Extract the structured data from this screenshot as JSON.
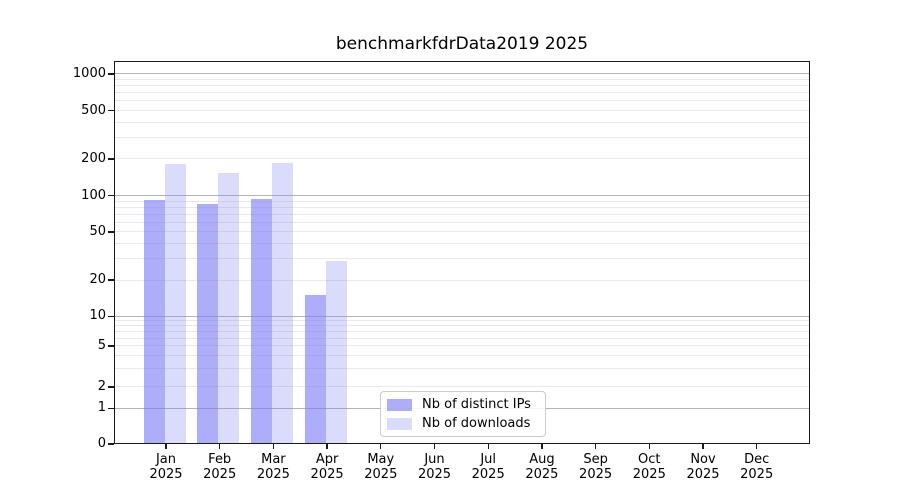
{
  "chart_data": {
    "type": "bar",
    "title": "benchmarkfdrData2019 2025",
    "scale": "symlog",
    "x_categories": [
      {
        "month": "Jan",
        "year": "2025"
      },
      {
        "month": "Feb",
        "year": "2025"
      },
      {
        "month": "Mar",
        "year": "2025"
      },
      {
        "month": "Apr",
        "year": "2025"
      },
      {
        "month": "May",
        "year": "2025"
      },
      {
        "month": "Jun",
        "year": "2025"
      },
      {
        "month": "Jul",
        "year": "2025"
      },
      {
        "month": "Aug",
        "year": "2025"
      },
      {
        "month": "Sep",
        "year": "2025"
      },
      {
        "month": "Oct",
        "year": "2025"
      },
      {
        "month": "Nov",
        "year": "2025"
      },
      {
        "month": "Dec",
        "year": "2025"
      }
    ],
    "series": [
      {
        "name": "Nb of distinct IPs",
        "color": "rgba(122,122,245,0.62)",
        "values": [
          92,
          85,
          93,
          15,
          null,
          null,
          null,
          null,
          null,
          null,
          null,
          null
        ]
      },
      {
        "name": "Nb of downloads",
        "color": "rgba(122,122,245,0.27)",
        "values": [
          180,
          153,
          186,
          29,
          null,
          null,
          null,
          null,
          null,
          null,
          null,
          null
        ]
      }
    ],
    "yticks": [
      0,
      1,
      2,
      5,
      10,
      20,
      50,
      100,
      200,
      500,
      1000
    ],
    "ylim": [
      0,
      1280
    ],
    "grid": {
      "major": [
        1,
        10,
        100,
        1000
      ],
      "minor": [
        2,
        3,
        4,
        5,
        6,
        7,
        8,
        9,
        20,
        30,
        40,
        50,
        60,
        70,
        80,
        90,
        200,
        300,
        400,
        500,
        600,
        700,
        800,
        900
      ]
    },
    "scale_anchors": [
      [
        0,
        1.0
      ],
      [
        1,
        0.9073
      ],
      [
        2,
        0.851
      ],
      [
        5,
        0.744
      ],
      [
        10,
        0.667
      ],
      [
        100,
        0.3512
      ],
      [
        1000,
        0.0339
      ]
    ],
    "legend": {
      "position": "lower center"
    },
    "colors": {
      "bar_dark": "#a9a9f6",
      "bar_light": "#dcdcf9",
      "grid_major": "#b4b4b4",
      "grid_minor": "#e9e9e9"
    }
  }
}
